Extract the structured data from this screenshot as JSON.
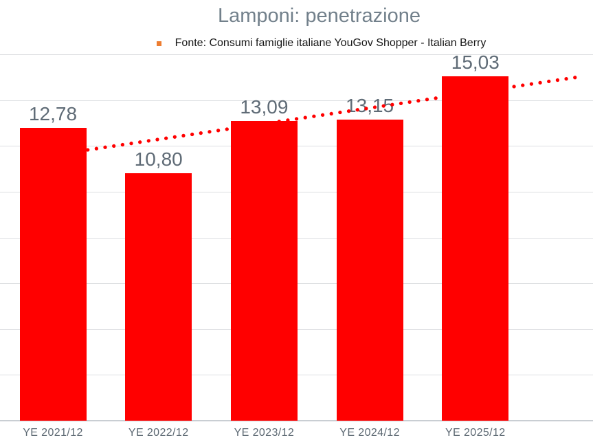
{
  "chart_data": {
    "type": "bar",
    "title": "Lamponi: penetrazione",
    "legend": {
      "position": "top",
      "label": "Fonte: Consumi famiglie italiane YouGov Shopper - Italian Berry",
      "marker_color": "#ED7D31"
    },
    "categories": [
      "YE 2021/12",
      "YE 2022/12",
      "YE 2023/12",
      "YE 2024/12",
      "YE 2025/12"
    ],
    "series": [
      {
        "name": "Fonte: Consumi famiglie italiane YouGov Shopper - Italian Berry",
        "values": [
          12.78,
          10.8,
          13.09,
          13.15,
          15.03
        ],
        "value_labels": [
          "12,78",
          "10,80",
          "13,09",
          "13,15",
          "15,03"
        ],
        "color": "#FF0000"
      }
    ],
    "trendline": {
      "type": "linear",
      "style": "dotted",
      "color": "#FF0000",
      "forecast_forward_periods": 1
    },
    "value_axis": {
      "visible": false,
      "min": 0,
      "max": 16,
      "major_unit": 2
    },
    "grid": true,
    "xlabel": "",
    "ylabel": ""
  },
  "colors": {
    "background": "#FFFFFF",
    "title_text": "#72808B",
    "data_label_text": "#5F6B76",
    "axis_label_text": "#5C6872",
    "gridline": "#DCDEE1",
    "axis_line": "#C9CED3",
    "bar": "#FF0000",
    "legend_marker": "#ED7D31"
  }
}
